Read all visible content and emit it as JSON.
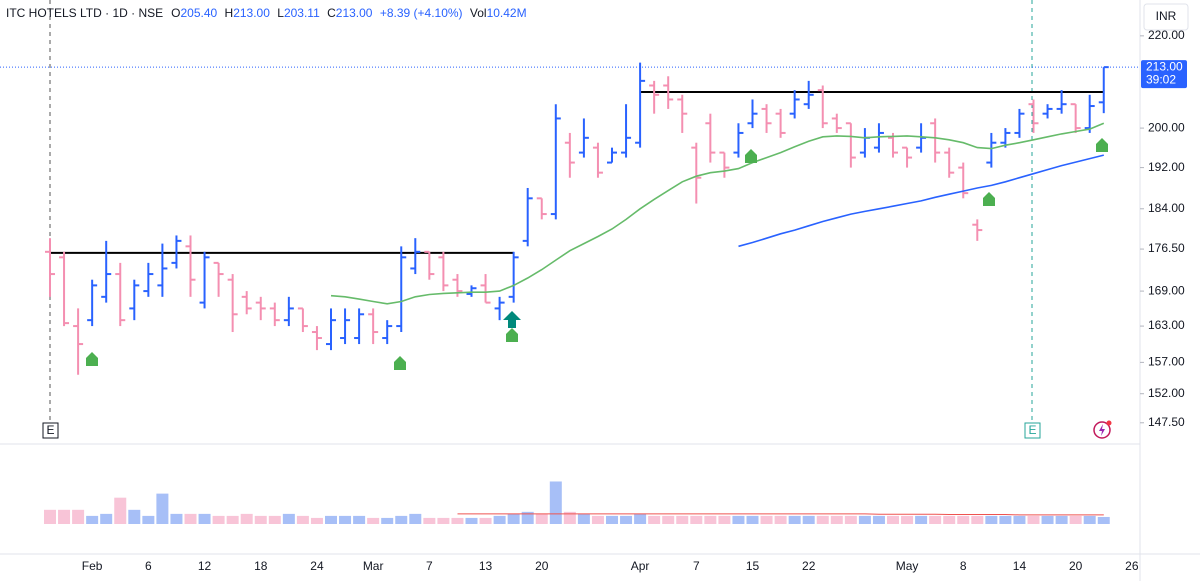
{
  "chart_data": {
    "type": "ohlc",
    "symbol": "ITC HOTELS LTD · 1D · NSE",
    "legend_fields": [
      {
        "key": "O",
        "text": "205.40"
      },
      {
        "key": "H",
        "text": "213.00"
      },
      {
        "key": "L",
        "text": "203.11"
      },
      {
        "key": "C",
        "text": "213.00"
      }
    ],
    "change": "+8.39 (+4.10%)",
    "volume_key": "Vol",
    "volume_text": "10.42M",
    "currency": "INR",
    "last_price": {
      "value": 213,
      "label": "213.00"
    },
    "countdown": "39:02",
    "events": [
      "E",
      "E"
    ],
    "log_scale": true,
    "ylim": [
      144.9,
      228.3
    ],
    "yticks": [
      {
        "value": 220,
        "label": "220.00"
      },
      {
        "value": 200,
        "label": "200.00"
      },
      {
        "value": 192,
        "label": "192.00"
      },
      {
        "value": 184,
        "label": "184.00"
      },
      {
        "value": 176.5,
        "label": "176.50"
      },
      {
        "value": 169,
        "label": "169.00"
      },
      {
        "value": 163,
        "label": "163.00"
      },
      {
        "value": 157,
        "label": "157.00"
      },
      {
        "value": 152,
        "label": "152.00"
      },
      {
        "value": 147.5,
        "label": "147.50"
      }
    ],
    "levels": [
      175.8,
      207.6
    ],
    "up_color": "#2962ff",
    "down_color": "#f48fb1",
    "volume_up_color": "#a7bff7",
    "volume_down_color": "#f8c4d7",
    "volume_lim": [
      0,
      80
    ],
    "categories": [
      null,
      null,
      null,
      "Feb",
      null,
      null,
      null,
      "6",
      null,
      null,
      null,
      "12",
      null,
      null,
      null,
      "18",
      null,
      null,
      null,
      "24",
      null,
      null,
      null,
      "Mar",
      null,
      null,
      null,
      "7",
      null,
      null,
      null,
      "13",
      null,
      null,
      null,
      "20",
      null,
      null,
      null,
      null,
      null,
      null,
      "Apr",
      null,
      null,
      null,
      "7",
      null,
      null,
      null,
      "15",
      null,
      null,
      null,
      "22",
      null,
      null,
      null,
      null,
      null,
      null,
      "May",
      null,
      null,
      null,
      "8",
      null,
      null,
      null,
      "14",
      null,
      null,
      null,
      "20",
      null,
      null,
      null,
      "26"
    ],
    "open": [
      176,
      175,
      163,
      164,
      168,
      172,
      166,
      169,
      170,
      174,
      177,
      167,
      174,
      171,
      168,
      167,
      166,
      164,
      166,
      162,
      160,
      161,
      161,
      165,
      161,
      163,
      173,
      176,
      175,
      171,
      168.5,
      170,
      166,
      168,
      178,
      186,
      183,
      197,
      195,
      196,
      193,
      195,
      197,
      209,
      209,
      206,
      196,
      201,
      195,
      195,
      201,
      204,
      203,
      203,
      205,
      208,
      202,
      201,
      195,
      196,
      198,
      196,
      196,
      201,
      195,
      192,
      181,
      193,
      197,
      199,
      205,
      203,
      204,
      205,
      200,
      205.4,
      null,
      null
    ],
    "high": [
      178.5,
      176,
      166,
      171,
      178,
      174,
      171,
      174,
      177.5,
      179,
      179,
      176,
      174,
      172,
      169,
      168,
      167,
      168,
      166,
      163,
      166,
      166,
      166,
      166,
      164,
      177,
      178.5,
      176,
      176,
      172,
      170,
      172,
      168,
      176,
      188,
      186,
      205,
      199,
      202,
      197,
      196,
      205,
      214,
      210,
      211,
      207,
      197,
      203,
      195,
      201,
      206,
      205,
      204,
      208,
      210,
      209,
      203,
      201,
      200,
      201,
      199,
      196,
      201,
      202,
      196,
      193,
      182,
      199,
      200,
      204,
      206,
      205,
      208,
      205,
      207,
      213,
      null,
      null
    ],
    "low": [
      168,
      163,
      155,
      163,
      167,
      163,
      164,
      168,
      168,
      173,
      168,
      166,
      168,
      162,
      165,
      164,
      163,
      163,
      162,
      159,
      159,
      160,
      160,
      160,
      160,
      162,
      172,
      171,
      169,
      168,
      168,
      167,
      164,
      167,
      177,
      182,
      182,
      190,
      194,
      190,
      193,
      194,
      196,
      203,
      204,
      199,
      185,
      193,
      190,
      194,
      200,
      199,
      198,
      202,
      204,
      200,
      199,
      192,
      194,
      195,
      194,
      192,
      195,
      193,
      190,
      186,
      178,
      192,
      196,
      198,
      199,
      202,
      203,
      199,
      199,
      203.11,
      null,
      null
    ],
    "close": [
      172,
      163.5,
      160,
      170,
      172,
      164,
      170,
      172,
      173,
      178,
      171,
      175,
      172,
      165,
      166,
      166,
      164,
      166,
      163,
      161,
      164,
      164,
      165,
      162,
      163,
      175,
      176,
      172,
      170,
      169,
      169.5,
      167,
      167,
      175,
      186,
      183,
      202,
      193,
      198,
      191,
      195,
      198,
      210,
      207,
      206,
      203,
      190,
      195,
      192,
      199,
      203,
      201,
      199,
      206,
      207,
      201,
      200,
      194,
      198,
      199,
      195,
      194,
      198,
      195,
      191,
      187,
      180,
      197,
      199,
      203,
      201,
      204,
      205,
      200,
      204.61,
      213,
      null,
      null
    ],
    "volume": [
      21,
      21,
      21,
      12,
      15,
      39,
      21,
      12,
      45,
      15,
      15,
      15,
      12,
      12,
      15,
      12,
      12,
      15,
      12,
      9,
      12,
      12,
      12,
      9,
      9,
      12,
      15,
      9,
      9,
      9,
      9,
      9,
      12,
      15,
      18,
      15,
      63,
      18,
      15,
      12,
      12,
      12,
      15,
      12,
      12,
      12,
      12,
      12,
      12,
      12,
      12,
      12,
      12,
      12,
      12,
      12,
      12,
      12,
      12,
      12,
      12,
      12,
      12,
      12,
      12,
      12,
      12,
      12,
      12,
      12,
      12,
      12,
      12,
      12,
      12,
      10.42,
      null,
      null
    ],
    "series": [
      {
        "color": "#66bb6a",
        "values": [
          null,
          null,
          null,
          null,
          null,
          null,
          null,
          null,
          null,
          null,
          null,
          null,
          null,
          null,
          null,
          null,
          null,
          null,
          null,
          null,
          168.2,
          168,
          167.6,
          167.2,
          166.8,
          167.2,
          168,
          168.4,
          168.6,
          168.7,
          168.8,
          168.8,
          169,
          170,
          171.3,
          172.8,
          174.5,
          176.2,
          177.5,
          178.8,
          180.2,
          182,
          184,
          185.8,
          187.5,
          189.2,
          190.3,
          191,
          191.3,
          191.8,
          193,
          194,
          195,
          196.2,
          197.3,
          198.2,
          198.4,
          198.3,
          198,
          198.2,
          198.3,
          198.4,
          198.2,
          198,
          197.6,
          197,
          196,
          195.8,
          196.5,
          197,
          197.6,
          198.2,
          198.8,
          199.3,
          199.8,
          201,
          null,
          null
        ]
      },
      {
        "color": "#2962ff",
        "values": [
          null,
          null,
          null,
          null,
          null,
          null,
          null,
          null,
          null,
          null,
          null,
          null,
          null,
          null,
          null,
          null,
          null,
          null,
          null,
          null,
          null,
          null,
          null,
          null,
          null,
          null,
          null,
          null,
          null,
          null,
          null,
          null,
          null,
          null,
          null,
          null,
          null,
          null,
          null,
          null,
          null,
          null,
          null,
          null,
          null,
          null,
          null,
          null,
          null,
          177,
          177.7,
          178.5,
          179.3,
          180,
          180.8,
          181.6,
          182.3,
          183,
          183.5,
          184,
          184.5,
          185,
          185.5,
          186.2,
          186.8,
          187.4,
          188,
          188.5,
          189.2,
          190,
          190.8,
          191.6,
          192.4,
          193.1,
          193.8,
          194.5,
          null,
          null
        ]
      },
      {
        "color": "#ef5350",
        "axis": "volume",
        "values": [
          null,
          null,
          null,
          null,
          null,
          null,
          null,
          null,
          null,
          null,
          null,
          null,
          null,
          null,
          null,
          null,
          null,
          null,
          null,
          null,
          null,
          null,
          null,
          null,
          null,
          null,
          null,
          null,
          null,
          15,
          15,
          15,
          15,
          15,
          15,
          15,
          15,
          15,
          15,
          15,
          15,
          15,
          15,
          15,
          15,
          15,
          15,
          15,
          15,
          15,
          15,
          15,
          15,
          15,
          15,
          15,
          15,
          15,
          15,
          14.5,
          14.5,
          14.5,
          14.5,
          14.5,
          14,
          14,
          14,
          14,
          14,
          13.5,
          13.5,
          13.5,
          13.5,
          13.5,
          13.5,
          13.5,
          null,
          null
        ]
      }
    ]
  }
}
